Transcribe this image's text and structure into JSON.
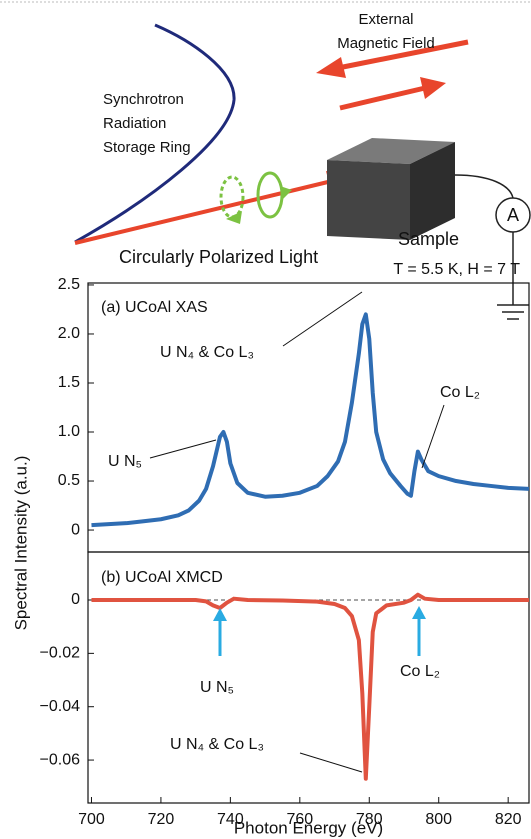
{
  "diagram": {
    "field_label": [
      "External",
      "Magnetic Field"
    ],
    "ring_label": [
      "Synchrotron",
      "Radiation",
      "Storage Ring"
    ],
    "sample_label": "Sample",
    "light_label": "Circularly Polarized Light",
    "meter_label": "A"
  },
  "chart_data": [
    {
      "type": "line",
      "subtitle": "T = 5.5 K, H = 7 T",
      "ylabel": "Spectral Intensity (a.u.)",
      "color": "#2f6db3",
      "x": [
        700,
        705,
        710,
        715,
        720,
        725,
        728,
        731,
        733,
        735,
        737,
        738,
        739,
        740,
        742,
        745,
        750,
        755,
        760,
        765,
        768,
        771,
        773,
        775,
        777,
        778,
        779,
        780,
        781,
        782,
        784,
        786,
        789,
        791,
        792,
        793,
        794,
        795,
        797,
        800,
        805,
        810,
        815,
        820,
        826
      ],
      "values": [
        0.05,
        0.06,
        0.07,
        0.09,
        0.11,
        0.15,
        0.2,
        0.3,
        0.42,
        0.65,
        0.95,
        1.0,
        0.9,
        0.68,
        0.48,
        0.38,
        0.34,
        0.35,
        0.38,
        0.45,
        0.55,
        0.7,
        0.9,
        1.3,
        1.8,
        2.1,
        2.2,
        1.95,
        1.4,
        1.0,
        0.72,
        0.58,
        0.45,
        0.37,
        0.35,
        0.6,
        0.8,
        0.72,
        0.6,
        0.55,
        0.5,
        0.47,
        0.45,
        0.43,
        0.42
      ],
      "xlim": [
        699,
        826
      ],
      "ylim": [
        -0.224,
        2.52
      ],
      "yticks": [
        0,
        0.5,
        {
          "value": 1.0,
          "label": "1.0"
        },
        1.5,
        {
          "value": 2.0,
          "label": "2.0"
        },
        2.5
      ],
      "annotations": [
        "(a) UCoAl XAS",
        "U N₄ & Co L₃",
        "Co L₂",
        "U N₅"
      ]
    },
    {
      "type": "line",
      "xlabel": "Photon Energy (eV)",
      "color": "#e05340",
      "zero_line": true,
      "x": [
        700,
        710,
        720,
        730,
        733,
        735,
        737,
        739,
        741,
        745,
        755,
        765,
        770,
        773,
        775,
        777,
        778,
        779,
        780,
        781,
        782,
        785,
        790,
        792,
        794,
        796,
        800,
        810,
        820,
        826
      ],
      "values": [
        0,
        0,
        0,
        0,
        -0.0005,
        -0.002,
        -0.003,
        -0.001,
        0.0005,
        0,
        -0.0002,
        -0.0006,
        -0.0015,
        -0.003,
        -0.006,
        -0.015,
        -0.035,
        -0.067,
        -0.04,
        -0.012,
        -0.005,
        -0.002,
        -0.001,
        0,
        0.002,
        0.0005,
        0,
        0,
        0,
        0
      ],
      "xlim": [
        699,
        826
      ],
      "ylim": [
        -0.0761,
        0.018
      ],
      "xticks": [
        700,
        720,
        740,
        760,
        780,
        800,
        820
      ],
      "yticks": [
        0,
        {
          "value": -0.02,
          "label": "−0.02"
        },
        {
          "value": -0.04,
          "label": "−0.04"
        },
        {
          "value": -0.06,
          "label": "−0.06"
        }
      ],
      "annotations": [
        "(b) UCoAl XMCD",
        "U N₅",
        "Co L₂",
        "U N₄ & Co L₃"
      ]
    }
  ]
}
